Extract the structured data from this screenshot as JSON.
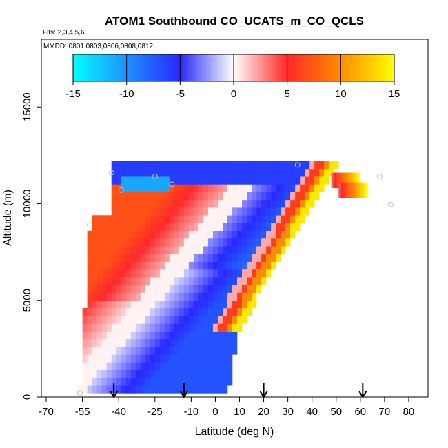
{
  "chart_data": {
    "type": "heatmap",
    "title": "ATOM1 Southbound CO_UCATS_m_CO_QCLS",
    "subtitle_flights": "Flts: 2,3,4,5,6",
    "subtitle_dates": "MMDD: 0801,0803,0806,0808,0812",
    "xlabel": "Latitude (deg N)",
    "ylabel": "Altitude (m)",
    "xlim": [
      -72,
      88
    ],
    "ylim": [
      0,
      18500
    ],
    "x_ticks": [
      -70,
      -55,
      -40,
      -25,
      -10,
      0,
      10,
      20,
      30,
      40,
      50,
      60,
      70,
      80
    ],
    "x_tick_labels": [
      "-70",
      "-55",
      "-40",
      "-25",
      "-10",
      "0",
      "10",
      "20",
      "30",
      "40",
      "50",
      "60",
      "70",
      "80"
    ],
    "y_ticks": [
      0,
      5000,
      10000,
      15000
    ],
    "y_tick_labels": [
      "0",
      "5000",
      "10000",
      "15000"
    ],
    "colorbar": {
      "range": [
        -15,
        15
      ],
      "ticks": [
        -15,
        -10,
        -5,
        0,
        5,
        10,
        15
      ],
      "tick_labels": [
        "-15",
        "-10",
        "-5",
        "0",
        "5",
        "10",
        "15"
      ],
      "colors": [
        "#00ffff",
        "#1e90ff",
        "#2828ff",
        "#ffffff",
        "#ff2828",
        "#ff8c00",
        "#ffff00"
      ]
    },
    "arrow_latitudes": [
      -42,
      -13,
      20,
      61
    ],
    "sample_points": [
      {
        "lat": -56,
        "alt": 200
      },
      {
        "lat": -52,
        "alt": 8900
      },
      {
        "lat": -43,
        "alt": 11600
      },
      {
        "lat": -39,
        "alt": 10700
      },
      {
        "lat": -25,
        "alt": 11400
      },
      {
        "lat": -18,
        "alt": 11000
      },
      {
        "lat": 34,
        "alt": 12000
      },
      {
        "lat": 68,
        "alt": 11400
      },
      {
        "lat": 72.5,
        "alt": 9950
      }
    ],
    "bands": [
      {
        "alt_range": [
          11000,
          12000
        ],
        "lat_range": [
          -44,
          33
        ],
        "value": -6,
        "note": "upper cap"
      },
      {
        "alt_range": [
          10500,
          11500
        ],
        "lat_range": [
          -40,
          -18
        ],
        "value": -11,
        "note": "cyan streak"
      },
      {
        "lat_range": [
          48,
          59
        ],
        "alt_range": [
          9800,
          11500
        ],
        "value": 12,
        "note": "NH upper flank"
      }
    ]
  }
}
